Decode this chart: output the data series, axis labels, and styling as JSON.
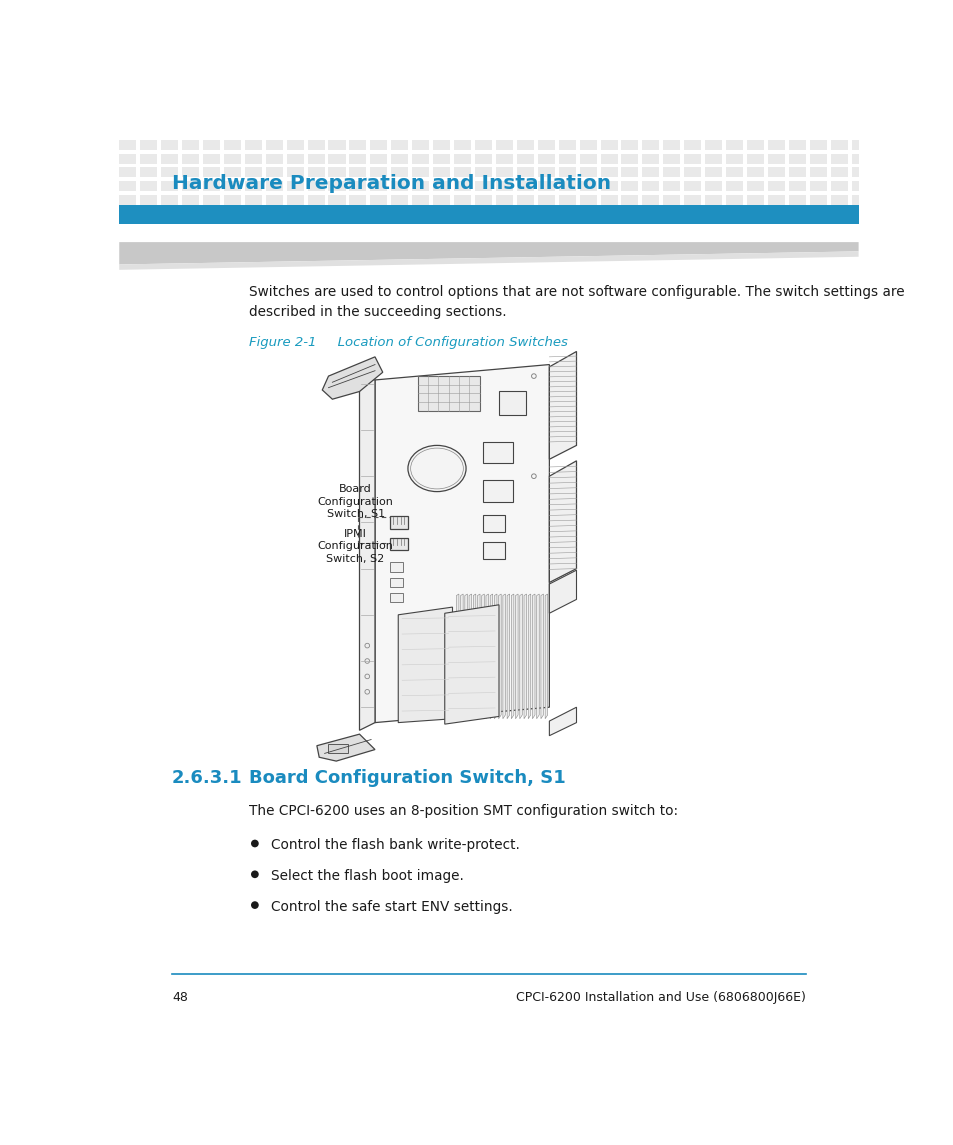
{
  "page_bg": "#ffffff",
  "header_title": "Hardware Preparation and Installation",
  "header_title_color": "#1a8bbf",
  "header_bar_color": "#1e8fc0",
  "body_text1": "Switches are used to control options that are not software configurable. The switch settings are\ndescribed in the succeeding sections.",
  "figure_label": "Figure 2-1",
  "figure_caption": "     Location of Configuration Switches",
  "figure_label_color": "#1a9bbf",
  "label_board_config": "Board\nConfiguration\nSwitch, S1",
  "label_ipmi": "IPMI\nConfiguration\nSwitch, S2",
  "section_number": "2.6.3.1",
  "section_title": "Board Configuration Switch, S1",
  "section_title_color": "#1a8bbf",
  "section_text": "The CPCI-6200 uses an 8-position SMT configuration switch to:",
  "bullet1": "Control the flash bank write-protect.",
  "bullet2": "Select the flash boot image.",
  "bullet3": "Control the safe start ENV settings.",
  "footer_line_color": "#1a8bbf",
  "footer_page": "48",
  "footer_right": "CPCI-6200 Installation and Use (6806800J66E)"
}
